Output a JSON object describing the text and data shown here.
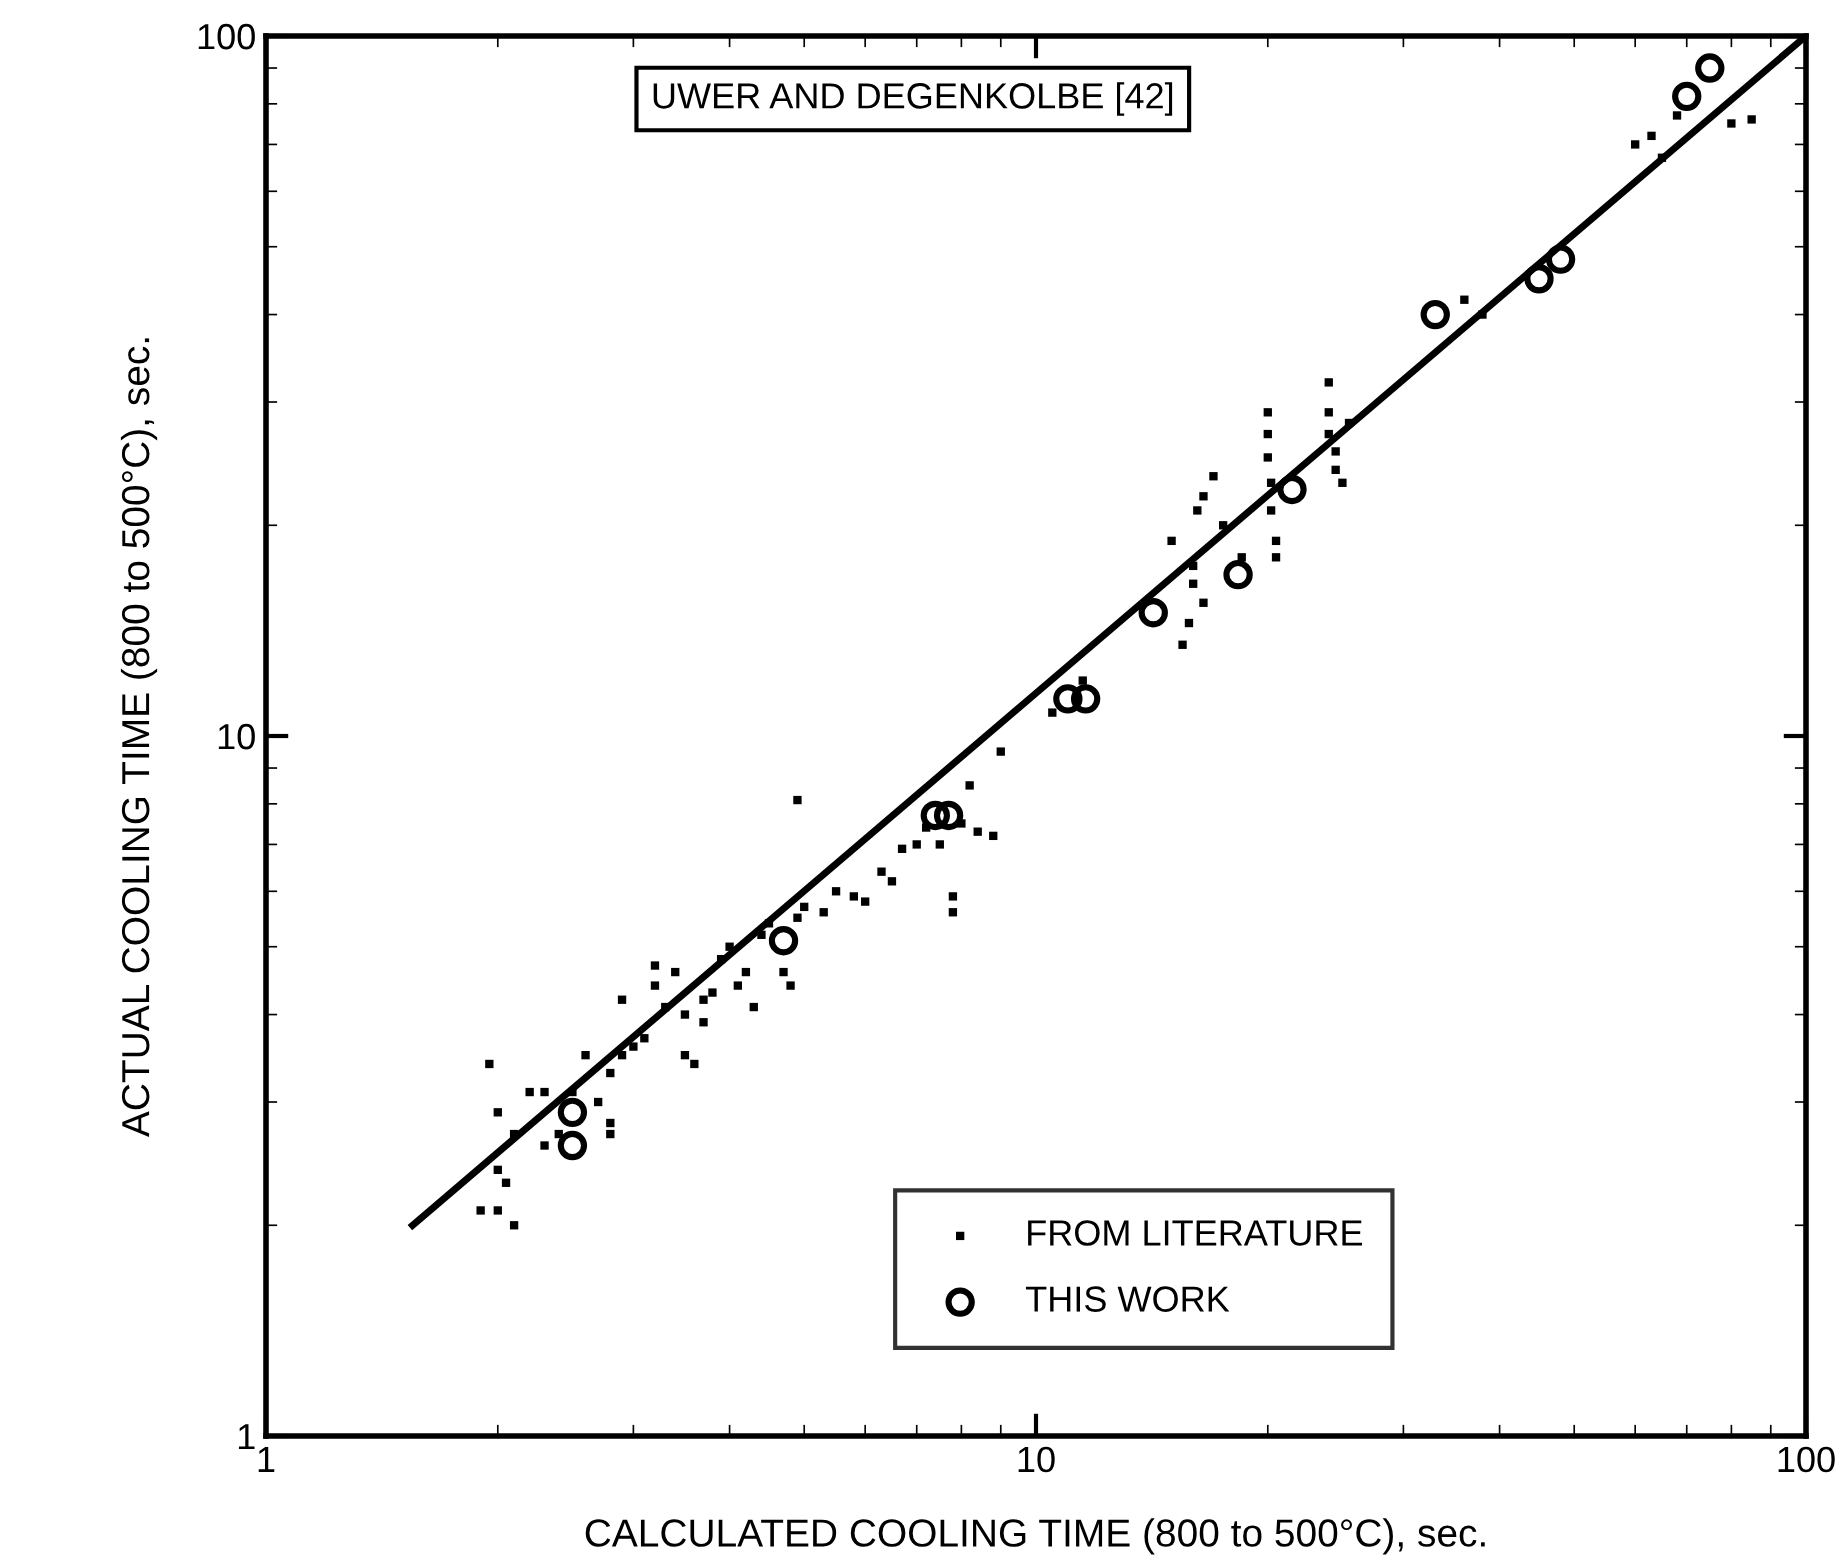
{
  "chart_data": {
    "type": "scatter",
    "xlabel": "CALCULATED COOLING TIME (800 to 500°C), sec.",
    "ylabel": "ACTUAL COOLING TIME (800 to 500°C), sec.",
    "annotations": [
      "UWER AND DEGENKOLBE [42]"
    ],
    "log": "xy",
    "xlim": [
      1,
      100
    ],
    "ylim": [
      1,
      100
    ],
    "xticks": [
      1,
      10,
      100
    ],
    "yticks": [
      1,
      10,
      100
    ],
    "grid": false,
    "legend": "bottom",
    "series": [
      {
        "name": "FROM LITERATURE",
        "marker": "square",
        "color": "#000000",
        "x": [
          1.9,
          2.0,
          2.05,
          2.1,
          2.0,
          1.95,
          2.0,
          2.1,
          2.2,
          2.3,
          2.3,
          2.4,
          2.5,
          2.6,
          2.7,
          2.8,
          2.8,
          2.8,
          2.9,
          2.9,
          3.0,
          3.1,
          3.2,
          3.2,
          3.3,
          3.4,
          3.5,
          3.5,
          3.6,
          3.7,
          3.7,
          3.8,
          3.9,
          4.0,
          4.1,
          4.2,
          4.3,
          4.4,
          4.5,
          4.7,
          4.8,
          4.9,
          4.9,
          5.0,
          5.3,
          5.5,
          5.8,
          6.0,
          6.3,
          6.5,
          6.7,
          7.0,
          7.2,
          7.5,
          7.8,
          7.8,
          8.0,
          8.2,
          8.4,
          8.8,
          9.0,
          10.5,
          11.5,
          15.0,
          15.5,
          15.8,
          16.0,
          16.0,
          16.2,
          16.5,
          16.5,
          17.0,
          17.5,
          18.5,
          20.0,
          20.0,
          20.0,
          20.2,
          20.2,
          20.5,
          20.5,
          24.0,
          24.0,
          24.0,
          24.5,
          24.5,
          25.0,
          25.5,
          36,
          38,
          60,
          63,
          65,
          68,
          80,
          85
        ],
        "values": [
          2.1,
          2.1,
          2.3,
          2.0,
          2.4,
          3.4,
          2.9,
          2.7,
          3.1,
          3.1,
          2.6,
          2.7,
          3.1,
          3.5,
          3.0,
          3.3,
          2.8,
          2.7,
          3.5,
          4.2,
          3.6,
          3.7,
          4.4,
          4.7,
          4.1,
          4.6,
          4.0,
          3.5,
          3.4,
          4.2,
          3.9,
          4.3,
          4.8,
          5.0,
          4.4,
          4.6,
          4.1,
          5.2,
          5.4,
          4.6,
          4.4,
          5.5,
          8.1,
          5.7,
          5.6,
          6.0,
          5.9,
          5.8,
          6.4,
          6.2,
          6.9,
          7.0,
          7.4,
          7.0,
          5.9,
          5.6,
          7.5,
          8.5,
          7.3,
          7.2,
          9.5,
          10.8,
          12.0,
          19.0,
          13.5,
          14.5,
          16.5,
          17.5,
          21.0,
          22.0,
          15.5,
          23.5,
          20.0,
          18.0,
          29.0,
          27.0,
          25.0,
          23.0,
          21.0,
          19.0,
          18.0,
          32.0,
          29.0,
          27.0,
          25.5,
          24.0,
          23.0,
          28.0,
          42,
          40,
          70,
          72,
          67,
          77,
          75,
          76
        ]
      },
      {
        "name": "THIS WORK",
        "marker": "circle",
        "color": "#000000",
        "x": [
          2.5,
          2.5,
          4.7,
          7.4,
          7.7,
          11.0,
          11.6,
          14.2,
          18.3,
          21.5,
          33,
          45,
          48,
          70,
          75
        ],
        "values": [
          2.9,
          2.6,
          5.1,
          7.7,
          7.7,
          11.3,
          11.3,
          15.0,
          17.0,
          22.5,
          40,
          45,
          48,
          82,
          90
        ]
      },
      {
        "type": "line",
        "color": "#000000",
        "x": [
          1.55,
          100
        ],
        "values": [
          2.0,
          100
        ]
      }
    ]
  }
}
